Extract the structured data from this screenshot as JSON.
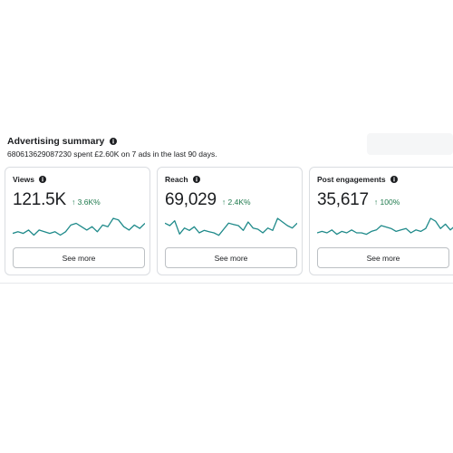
{
  "summary": {
    "title": "Advertising summary",
    "description": "680613629087230 spent £2.60K on 7 ads in the last 90 days."
  },
  "icons": {
    "info": "info-icon",
    "arrow_up": "arrow-up-icon"
  },
  "colors": {
    "sparkline": "#1f8a8a",
    "positive_change": "#1f7a4d"
  },
  "cards": [
    {
      "label": "Views",
      "value": "121.5K",
      "change": "↑ 3.6K%",
      "button": "See more",
      "sparkline": [
        4,
        5,
        4,
        6,
        3,
        6,
        5,
        4,
        5,
        3,
        5,
        9,
        10,
        8,
        6,
        8,
        5,
        9,
        8,
        13,
        12,
        8,
        6,
        9,
        7,
        10
      ]
    },
    {
      "label": "Reach",
      "value": "69,029",
      "change": "↑ 2.4K%",
      "button": "See more",
      "sparkline": [
        14,
        12,
        16,
        5,
        10,
        8,
        11,
        6,
        8,
        7,
        6,
        4,
        9,
        14,
        13,
        12,
        8,
        15,
        10,
        9,
        6,
        10,
        8,
        18,
        15,
        12,
        10,
        14
      ]
    },
    {
      "label": "Post engagements",
      "value": "35,617",
      "change": "↑ 100%",
      "button": "See more",
      "sparkline": [
        5,
        6,
        5,
        7,
        4,
        6,
        5,
        7,
        5,
        5,
        4,
        6,
        7,
        10,
        9,
        8,
        6,
        7,
        8,
        5,
        7,
        6,
        8,
        15,
        13,
        8,
        11,
        7,
        10,
        9
      ]
    }
  ]
}
